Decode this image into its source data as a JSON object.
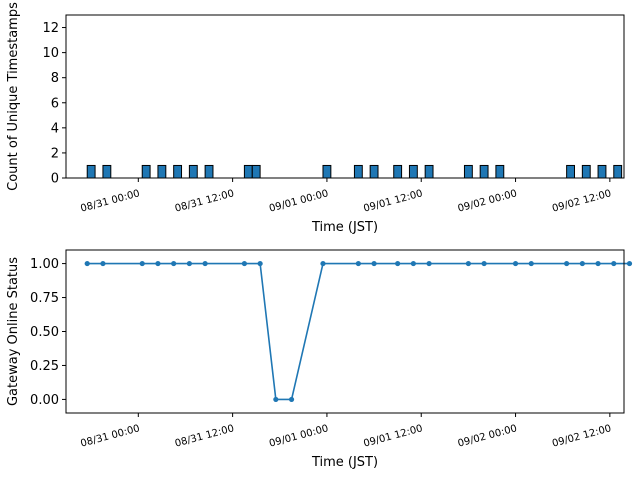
{
  "chart_data": [
    {
      "type": "bar",
      "title": "",
      "xlabel": "Time (JST)",
      "ylabel": "Count of Unique Timestamps",
      "ylim": [
        0,
        13
      ],
      "yticks": [
        0,
        2,
        4,
        6,
        8,
        10,
        12
      ],
      "xlim": [
        -9.2,
        61.8
      ],
      "x_unit": "hours since 08/31 00:00 (JST)",
      "xticks": [
        {
          "value": 0,
          "label": "08/31 00:00"
        },
        {
          "value": 12,
          "label": "08/31 12:00"
        },
        {
          "value": 24,
          "label": "09/01 00:00"
        },
        {
          "value": 36,
          "label": "09/01 12:00"
        },
        {
          "value": 48,
          "label": "09/02 00:00"
        },
        {
          "value": 60,
          "label": "09/02 12:00"
        }
      ],
      "bar_width_hours": 1,
      "x": [
        -6,
        -4,
        1,
        3,
        5,
        7,
        9,
        14,
        15,
        24,
        28,
        30,
        33,
        35,
        37,
        42,
        44,
        46,
        55,
        57,
        59,
        61
      ],
      "values": [
        1,
        1,
        1,
        1,
        1,
        1,
        1,
        1,
        1,
        1,
        1,
        1,
        1,
        1,
        1,
        1,
        1,
        1,
        1,
        1,
        1,
        1
      ]
    },
    {
      "type": "line",
      "title": "",
      "xlabel": "Time (JST)",
      "ylabel": "Gateway Online Status",
      "ylim": [
        -0.1,
        1.1
      ],
      "yticks": [
        "0.00",
        "0.25",
        "0.50",
        "0.75",
        "1.00"
      ],
      "xlim": [
        -9.2,
        61.8
      ],
      "x_unit": "hours since 08/31 00:00 (JST)",
      "xticks": [
        {
          "value": 0,
          "label": "08/31 00:00"
        },
        {
          "value": 12,
          "label": "08/31 12:00"
        },
        {
          "value": 24,
          "label": "09/01 00:00"
        },
        {
          "value": 36,
          "label": "09/01 12:00"
        },
        {
          "value": 48,
          "label": "09/02 00:00"
        },
        {
          "value": 60,
          "label": "09/02 12:00"
        }
      ],
      "x": [
        -6.5,
        -4.5,
        0.5,
        2.5,
        4.5,
        6.5,
        8.5,
        13.5,
        15.5,
        17.5,
        19.5,
        23.5,
        28,
        30,
        33,
        35,
        37,
        42,
        44,
        48,
        50,
        54.5,
        56.5,
        58.5,
        60.5,
        62.5
      ],
      "y": [
        1,
        1,
        1,
        1,
        1,
        1,
        1,
        1,
        1,
        0,
        0,
        1,
        1,
        1,
        1,
        1,
        1,
        1,
        1,
        1,
        1,
        1,
        1,
        1,
        1,
        1
      ]
    }
  ]
}
